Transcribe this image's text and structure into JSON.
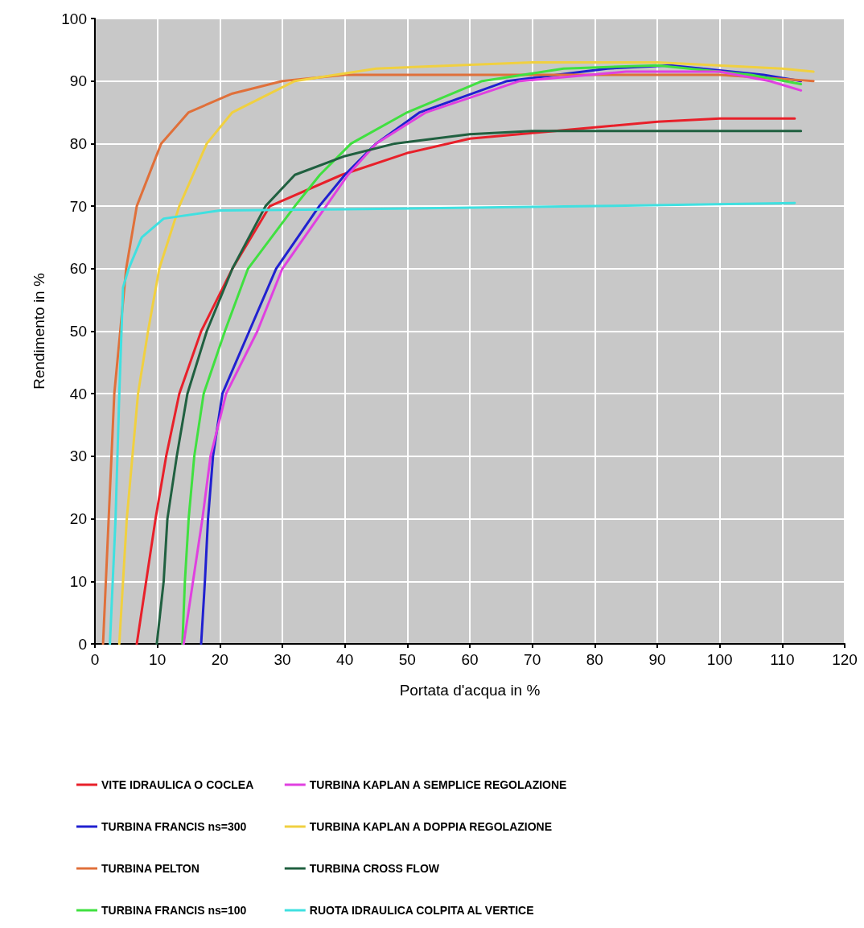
{
  "chart_data": {
    "type": "line",
    "xlabel": "Portata d'acqua in %",
    "ylabel": "Rendimento in %",
    "xlim": [
      0,
      120
    ],
    "xticks": [
      0,
      10,
      20,
      30,
      40,
      50,
      60,
      70,
      80,
      90,
      100,
      110,
      120
    ],
    "ylim": [
      0,
      100
    ],
    "yticks": [
      0,
      10,
      20,
      30,
      40,
      50,
      60,
      70,
      80,
      90,
      100
    ],
    "grid": true,
    "legend": "bottom",
    "marker": "none",
    "line_style": "solid",
    "series": [
      {
        "name": "VITE IDRAULICA O COCLEA",
        "color": "#e8202a",
        "x": [
          6.7,
          8.2,
          9.7,
          11.4,
          13.5,
          17,
          22,
          28,
          39.5,
          50,
          60,
          73.6,
          90,
          100,
          112
        ],
        "values": [
          0,
          10,
          20,
          30,
          40,
          50,
          60,
          70,
          75,
          78.5,
          80.8,
          82,
          83.5,
          84,
          84
        ]
      },
      {
        "name": "TURBINA FRANCIS ns=300",
        "color": "#2020d0",
        "x": [
          17,
          17.6,
          18.1,
          18.9,
          20.4,
          24.7,
          29,
          35.9,
          40,
          45,
          52,
          66,
          82,
          92,
          107,
          113
        ],
        "values": [
          0,
          10,
          20,
          30,
          40,
          50,
          60,
          70,
          75,
          80,
          85,
          90,
          92,
          92.5,
          91,
          90
        ]
      },
      {
        "name": "TURBINA PELTON",
        "color": "#e0703a",
        "x": [
          1.3,
          2.2,
          3.1,
          5,
          6.7,
          10.6,
          15,
          22,
          30,
          40,
          60,
          80,
          100,
          115
        ],
        "values": [
          0,
          20,
          40,
          60,
          70,
          80,
          85,
          88,
          90,
          91,
          91,
          91,
          91,
          90
        ]
      },
      {
        "name": "TURBINA FRANCIS ns=100",
        "color": "#40e040",
        "x": [
          14,
          14.4,
          15,
          15.9,
          17.4,
          20.8,
          24.5,
          32,
          36,
          41,
          50,
          62,
          75,
          90,
          105,
          113
        ],
        "values": [
          0,
          10,
          20,
          30,
          40,
          50,
          60,
          70,
          75,
          80,
          85,
          90,
          92,
          92.5,
          91,
          89.5
        ]
      },
      {
        "name": "TURBINA KAPLAN A SEMPLICE REGOLAZIONE",
        "color": "#e040e0",
        "x": [
          14.2,
          15.7,
          17.2,
          18.5,
          21,
          26,
          30,
          37,
          40.5,
          45,
          53,
          68,
          85,
          100,
          108,
          113
        ],
        "values": [
          0,
          10,
          20,
          30,
          40,
          50,
          60,
          70,
          75,
          80,
          85,
          90,
          91.5,
          91.5,
          90,
          88.5
        ]
      },
      {
        "name": "TURBINA KAPLAN A DOPPIA REGOLAZIONE",
        "color": "#f0d040",
        "x": [
          3.9,
          5.1,
          6.9,
          8.5,
          10.3,
          13.5,
          17.9,
          22,
          32,
          45,
          70,
          90,
          110,
          115
        ],
        "values": [
          0,
          20,
          40,
          50,
          60,
          70,
          80,
          85,
          90,
          92,
          93,
          93,
          92,
          91.5
        ]
      },
      {
        "name": "TURBINA CROSS FLOW",
        "color": "#206040",
        "x": [
          9.9,
          11,
          11.6,
          13.1,
          14.8,
          17.9,
          22,
          27.3,
          32,
          40,
          48,
          60,
          70,
          90,
          113
        ],
        "values": [
          0,
          10,
          20,
          30,
          40,
          50,
          60,
          70,
          75,
          78,
          80,
          81.5,
          82,
          82,
          82
        ]
      },
      {
        "name": "RUOTA IDRAULICA COLPITA AL VERTICE",
        "color": "#40e0e0",
        "x": [
          2.4,
          3.3,
          3.9,
          4.5,
          5.4,
          7.5,
          11,
          20,
          40,
          80,
          112
        ],
        "values": [
          0,
          20,
          40,
          57,
          60,
          65,
          68,
          69.3,
          69.5,
          70,
          70.5
        ]
      }
    ]
  }
}
